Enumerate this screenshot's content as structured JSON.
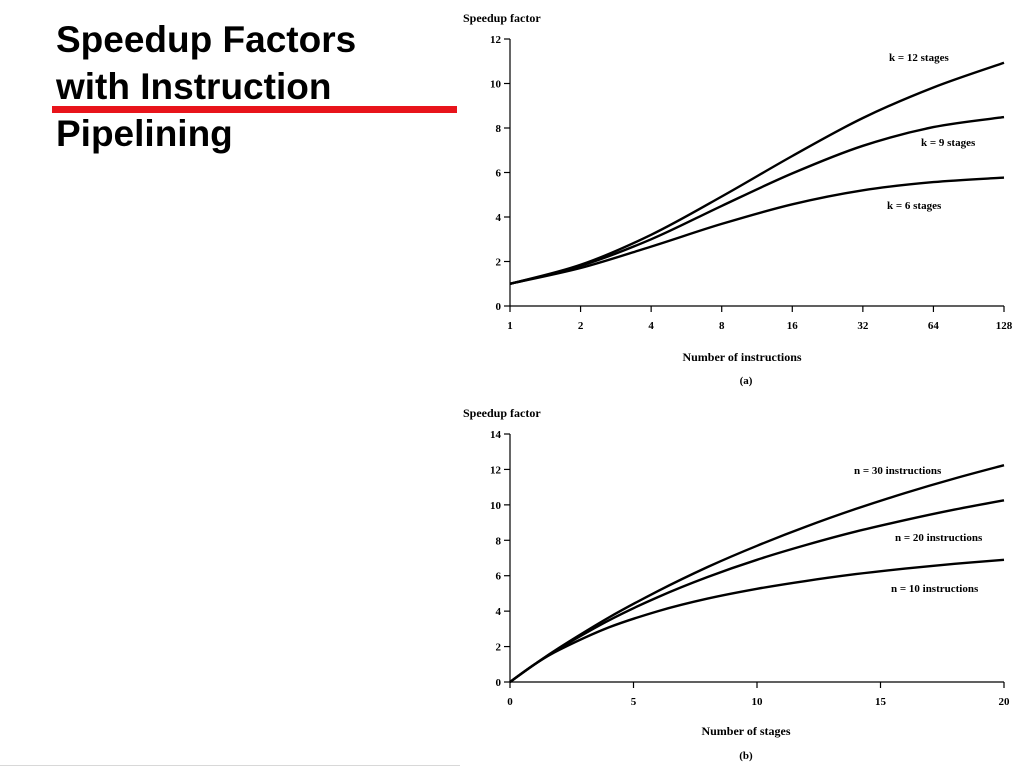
{
  "slide": {
    "title_lines": [
      "Speedup Factors",
      "with Instruction",
      "Pipelining"
    ],
    "accent_color": "#e8141b"
  },
  "chart_data": [
    {
      "type": "line",
      "caption": "(a)",
      "ylabel": "Speedup factor",
      "xlabel": "Number of instructions",
      "x_scale": "log2",
      "x_ticks": [
        1,
        2,
        4,
        8,
        16,
        32,
        64,
        128
      ],
      "y_ticks": [
        0,
        2,
        4,
        6,
        8,
        10,
        12
      ],
      "xlim": [
        1,
        128
      ],
      "ylim": [
        0,
        12
      ],
      "grid": false,
      "series": [
        {
          "name": "k = 12 stages",
          "k": 12,
          "x": [
            1,
            2,
            4,
            8,
            16,
            32,
            64,
            128
          ],
          "values": [
            1.0,
            1.85,
            3.2,
            4.92,
            6.74,
            8.45,
            9.82,
            10.93
          ]
        },
        {
          "name": "k = 9 stages",
          "k": 9,
          "x": [
            1,
            2,
            4,
            8,
            16,
            32,
            64,
            128
          ],
          "values": [
            1.0,
            1.8,
            3.0,
            4.5,
            5.96,
            7.2,
            8.04,
            8.49
          ]
        },
        {
          "name": "k = 6 stages",
          "k": 6,
          "x": [
            1,
            2,
            4,
            8,
            16,
            32,
            64,
            128
          ],
          "values": [
            1.0,
            1.71,
            2.67,
            3.69,
            4.57,
            5.2,
            5.57,
            5.77
          ]
        }
      ]
    },
    {
      "type": "line",
      "caption": "(b)",
      "ylabel": "Speedup factor",
      "xlabel": "Number of stages",
      "x_ticks": [
        0,
        5,
        10,
        15,
        20
      ],
      "y_ticks": [
        0,
        2,
        4,
        6,
        8,
        10,
        12,
        14
      ],
      "xlim": [
        0,
        20
      ],
      "ylim": [
        0,
        14
      ],
      "grid": false,
      "series": [
        {
          "name": "n = 30  instructions",
          "n": 30,
          "x": [
            0,
            1,
            2,
            4,
            6,
            8,
            10,
            12,
            14,
            16,
            18,
            20
          ],
          "values": [
            0,
            1.0,
            1.94,
            3.64,
            5.14,
            6.49,
            7.69,
            8.78,
            9.77,
            10.67,
            11.49,
            12.24
          ]
        },
        {
          "name": "n = 20  instructions",
          "n": 20,
          "x": [
            0,
            1,
            2,
            4,
            6,
            8,
            10,
            12,
            14,
            16,
            18,
            20
          ],
          "values": [
            0,
            1.0,
            1.9,
            3.48,
            4.8,
            5.93,
            6.9,
            7.74,
            8.49,
            9.14,
            9.73,
            10.26
          ]
        },
        {
          "name": "n = 10  instructions",
          "n": 10,
          "x": [
            0,
            1,
            2,
            4,
            6,
            8,
            10,
            12,
            14,
            16,
            18,
            20
          ],
          "values": [
            0,
            1.0,
            1.82,
            3.08,
            4.0,
            4.71,
            5.26,
            5.71,
            6.09,
            6.4,
            6.67,
            6.9
          ]
        }
      ]
    }
  ]
}
